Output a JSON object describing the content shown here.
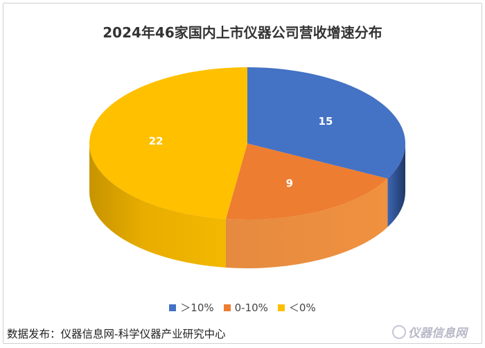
{
  "chart_data": {
    "type": "pie",
    "title": "2024年46家国内上市仪器公司营收增速分布",
    "categories": [
      "＞10%",
      "0-10%",
      "＜0%"
    ],
    "values": [
      15,
      9,
      22
    ],
    "colors": [
      "#4472C4",
      "#ED7D31",
      "#FFC000"
    ],
    "style": "3d",
    "data_labels": true,
    "legend_position": "bottom"
  },
  "footer": {
    "source": "数据发布：仪器信息网-科学仪器产业研究中心",
    "logo_text": "仪器信息网"
  }
}
